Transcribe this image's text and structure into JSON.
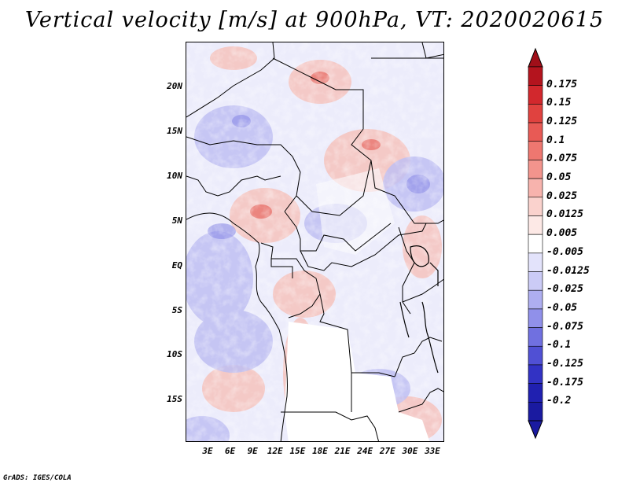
{
  "title": "Vertical velocity [m/s] at 900hPa, VT: 2020020615",
  "footer": "GrADS: IGES/COLA",
  "map": {
    "variable": "Vertical velocity",
    "units": "m/s",
    "level": "900hPa",
    "valid_time": "2020020615",
    "lon_range": [
      0,
      35
    ],
    "lat_range": [
      -20,
      25
    ],
    "lat_ticks": [
      "20N",
      "15N",
      "10N",
      "5N",
      "EQ",
      "5S",
      "10S",
      "15S"
    ],
    "lon_ticks": [
      "3E",
      "6E",
      "9E",
      "12E",
      "15E",
      "18E",
      "21E",
      "24E",
      "27E",
      "30E",
      "33E"
    ]
  },
  "colorbar": {
    "labels": [
      "0.175",
      "0.15",
      "0.125",
      "0.1",
      "0.075",
      "0.05",
      "0.025",
      "0.0125",
      "0.005",
      "-0.005",
      "-0.0125",
      "-0.025",
      "-0.05",
      "-0.075",
      "-0.1",
      "-0.125",
      "-0.175",
      "-0.2"
    ],
    "colors": [
      "#b4141e",
      "#d2282d",
      "#e0423f",
      "#e85a55",
      "#ee7770",
      "#f3948d",
      "#f7b3ad",
      "#fad2cd",
      "#fde9e6",
      "#ffffff",
      "#e3e3fb",
      "#cbcbf6",
      "#aeaef0",
      "#9090ea",
      "#7070e0",
      "#5050d4",
      "#3232c4",
      "#2020b0",
      "#1a1aa0"
    ],
    "end_colors": {
      "top": "#a00f19",
      "bottom": "#1a1aa0"
    }
  }
}
